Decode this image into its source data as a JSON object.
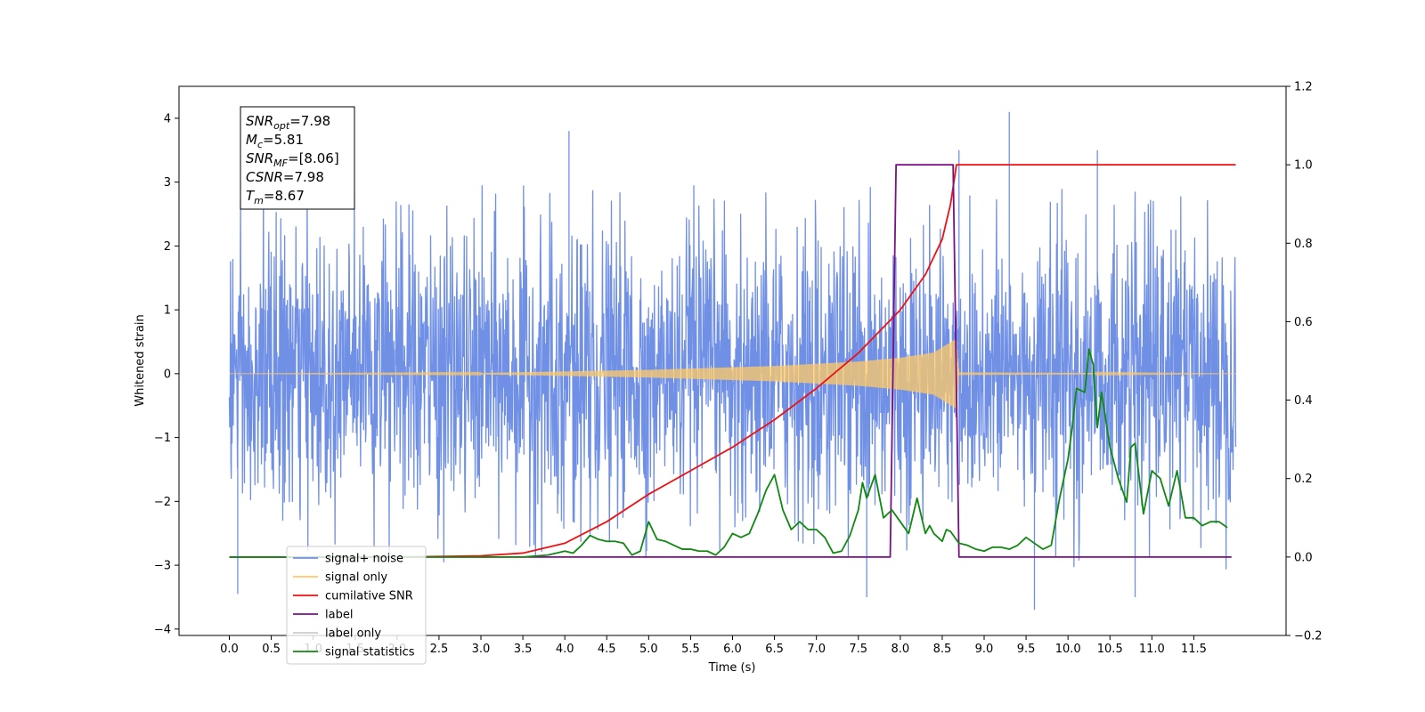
{
  "chart_data": {
    "type": "line",
    "xlabel": "Time (s)",
    "ylabel_left": "Whitened strain",
    "ylabel_right": "",
    "xlim": [
      -0.6,
      12.6
    ],
    "ylim_left": [
      -4.1,
      4.5
    ],
    "ylim_right": [
      -0.2,
      1.2
    ],
    "x_ticks": [
      "0.0",
      "0.5",
      "1.0",
      "1.5",
      "2.0",
      "2.5",
      "3.0",
      "3.5",
      "4.0",
      "4.5",
      "5.0",
      "5.5",
      "6.0",
      "6.5",
      "7.0",
      "7.5",
      "8.0",
      "8.5",
      "9.0",
      "9.5",
      "10.0",
      "10.5",
      "11.0",
      "11.5"
    ],
    "y_ticks_left": [
      "4",
      "3",
      "2",
      "1",
      "0",
      "−1",
      "−2",
      "−3",
      "−4"
    ],
    "y_ticks_right": [
      "1.2",
      "1.0",
      "0.8",
      "0.6",
      "0.4",
      "0.2",
      "0.0",
      "−0.2"
    ],
    "grid": false,
    "legend_position": "lower-left",
    "annotation_box": {
      "lines": [
        {
          "base": "SNR",
          "sub": "opt",
          "rest": "=7.98"
        },
        {
          "base": "M",
          "sub": "c",
          "rest": "=5.81"
        },
        {
          "base": "SNR",
          "sub": "MF",
          "rest": "=[8.06]"
        },
        {
          "base": "CSNR",
          "sub": "",
          "rest": "=7.98"
        },
        {
          "base": "T",
          "sub": "m",
          "rest": "=8.67"
        }
      ]
    },
    "series": [
      {
        "name": "signal+ noise",
        "axis": "left",
        "color": "#7090e6",
        "kind": "noise_band",
        "x_range": [
          0.0,
          12.0
        ],
        "envelope": [
          -2.6,
          2.6
        ],
        "notable_peaks": [
          {
            "x": 4.05,
            "y": 3.8
          },
          {
            "x": 9.3,
            "y": 4.1
          },
          {
            "x": 8.7,
            "y": 3.5
          },
          {
            "x": 10.35,
            "y": 3.5
          },
          {
            "x": 0.1,
            "y": -3.45
          },
          {
            "x": 9.6,
            "y": -3.7
          },
          {
            "x": 7.6,
            "y": -3.5
          },
          {
            "x": 10.8,
            "y": -3.5
          }
        ]
      },
      {
        "name": "signal only",
        "axis": "left",
        "color": "#ffc966",
        "kind": "chirp",
        "x_range": [
          0.0,
          12.0
        ],
        "amplitude_points": [
          [
            0.0,
            0.0
          ],
          [
            3.0,
            0.01
          ],
          [
            5.0,
            0.06
          ],
          [
            6.5,
            0.12
          ],
          [
            7.5,
            0.19
          ],
          [
            8.0,
            0.25
          ],
          [
            8.4,
            0.33
          ],
          [
            8.67,
            0.55
          ],
          [
            8.7,
            0.02
          ],
          [
            12.0,
            0.0
          ]
        ]
      },
      {
        "name": "cumilative SNR",
        "axis": "right",
        "color": "#ee1111",
        "x": [
          0.0,
          2.0,
          3.0,
          3.5,
          4.0,
          4.5,
          5.0,
          5.5,
          6.0,
          6.5,
          7.0,
          7.5,
          8.0,
          8.3,
          8.5,
          8.6,
          8.67,
          12.0
        ],
        "y": [
          0.0,
          0.0,
          0.003,
          0.01,
          0.035,
          0.09,
          0.16,
          0.22,
          0.28,
          0.35,
          0.43,
          0.52,
          0.63,
          0.72,
          0.81,
          0.9,
          1.0,
          1.0
        ]
      },
      {
        "name": "label",
        "axis": "right",
        "color": "#7a0f86",
        "x": [
          0.0,
          7.88,
          7.95,
          8.63,
          8.7,
          11.95
        ],
        "y": [
          0.0,
          0.0,
          1.0,
          1.0,
          0.0,
          0.0
        ]
      },
      {
        "name": "label only",
        "axis": "right",
        "color": "#cccccc",
        "legend_only": true
      },
      {
        "name": "signal statistics",
        "axis": "right",
        "color": "#118811",
        "x": [
          0.0,
          3.0,
          3.5,
          3.8,
          4.0,
          4.1,
          4.2,
          4.3,
          4.4,
          4.5,
          4.6,
          4.7,
          4.8,
          4.9,
          5.0,
          5.1,
          5.2,
          5.3,
          5.4,
          5.5,
          5.6,
          5.7,
          5.8,
          5.9,
          6.0,
          6.1,
          6.2,
          6.3,
          6.4,
          6.5,
          6.6,
          6.7,
          6.8,
          6.9,
          7.0,
          7.1,
          7.2,
          7.3,
          7.4,
          7.5,
          7.55,
          7.6,
          7.7,
          7.8,
          7.9,
          8.0,
          8.1,
          8.2,
          8.3,
          8.35,
          8.4,
          8.5,
          8.55,
          8.6,
          8.7,
          8.8,
          8.9,
          9.0,
          9.1,
          9.2,
          9.3,
          9.4,
          9.5,
          9.6,
          9.7,
          9.8,
          9.9,
          10.0,
          10.05,
          10.1,
          10.2,
          10.25,
          10.3,
          10.35,
          10.4,
          10.5,
          10.6,
          10.7,
          10.75,
          10.8,
          10.9,
          11.0,
          11.1,
          11.2,
          11.3,
          11.4,
          11.5,
          11.6,
          11.7,
          11.8,
          11.9
        ],
        "y": [
          0.0,
          0.0,
          0.0,
          0.005,
          0.015,
          0.01,
          0.03,
          0.055,
          0.045,
          0.04,
          0.04,
          0.035,
          0.005,
          0.015,
          0.09,
          0.045,
          0.04,
          0.03,
          0.02,
          0.02,
          0.015,
          0.015,
          0.005,
          0.025,
          0.06,
          0.05,
          0.06,
          0.11,
          0.17,
          0.21,
          0.12,
          0.07,
          0.09,
          0.07,
          0.07,
          0.05,
          0.01,
          0.015,
          0.055,
          0.12,
          0.19,
          0.15,
          0.21,
          0.1,
          0.12,
          0.09,
          0.06,
          0.15,
          0.06,
          0.08,
          0.06,
          0.04,
          0.07,
          0.065,
          0.035,
          0.03,
          0.02,
          0.015,
          0.025,
          0.025,
          0.02,
          0.03,
          0.05,
          0.035,
          0.02,
          0.03,
          0.15,
          0.25,
          0.33,
          0.43,
          0.42,
          0.53,
          0.49,
          0.33,
          0.42,
          0.28,
          0.2,
          0.14,
          0.28,
          0.29,
          0.11,
          0.22,
          0.2,
          0.13,
          0.22,
          0.1,
          0.1,
          0.08,
          0.09,
          0.09,
          0.075
        ]
      }
    ]
  }
}
